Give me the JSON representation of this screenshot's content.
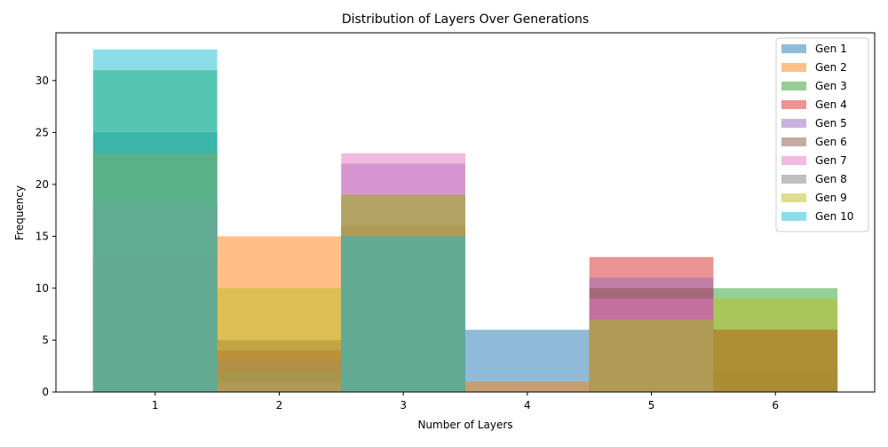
{
  "chart_data": {
    "type": "bar",
    "title": "Distribution of Layers Over Generations",
    "xlabel": "Number of Layers",
    "ylabel": "Frequency",
    "categories": [
      1,
      2,
      3,
      4,
      5,
      6
    ],
    "xlim": [
      0.2,
      6.8
    ],
    "ylim": [
      0,
      34.6
    ],
    "yticks": [
      0,
      5,
      10,
      15,
      20,
      25,
      30
    ],
    "grid": false,
    "legend_position": "top-right",
    "bar_alpha": 0.5,
    "series": [
      {
        "name": "Gen 1",
        "color": "#1f77b4",
        "values": [
          25,
          2,
          15,
          6,
          0,
          2
        ]
      },
      {
        "name": "Gen 2",
        "color": "#ff7f0e",
        "values": [
          23,
          15,
          16,
          1,
          7,
          6
        ]
      },
      {
        "name": "Gen 3",
        "color": "#2ca02c",
        "values": [
          31,
          0,
          15,
          0,
          0,
          10
        ]
      },
      {
        "name": "Gen 4",
        "color": "#d62728",
        "values": [
          13,
          4,
          16,
          0,
          13,
          6
        ]
      },
      {
        "name": "Gen 5",
        "color": "#9467bd",
        "values": [
          18,
          3,
          22,
          0,
          11,
          0
        ]
      },
      {
        "name": "Gen 6",
        "color": "#8c564b",
        "values": [
          18,
          5,
          16,
          0,
          10,
          6
        ]
      },
      {
        "name": "Gen 7",
        "color": "#e377c2",
        "values": [
          18,
          1,
          23,
          0,
          9,
          0
        ]
      },
      {
        "name": "Gen 8",
        "color": "#7f7f7f",
        "values": [
          23,
          2,
          19,
          0,
          7,
          0
        ]
      },
      {
        "name": "Gen 9",
        "color": "#bcbd22",
        "values": [
          23,
          10,
          19,
          0,
          7,
          9
        ]
      },
      {
        "name": "Gen 10",
        "color": "#17becf",
        "values": [
          33,
          0,
          15,
          0,
          0,
          0
        ]
      }
    ]
  }
}
